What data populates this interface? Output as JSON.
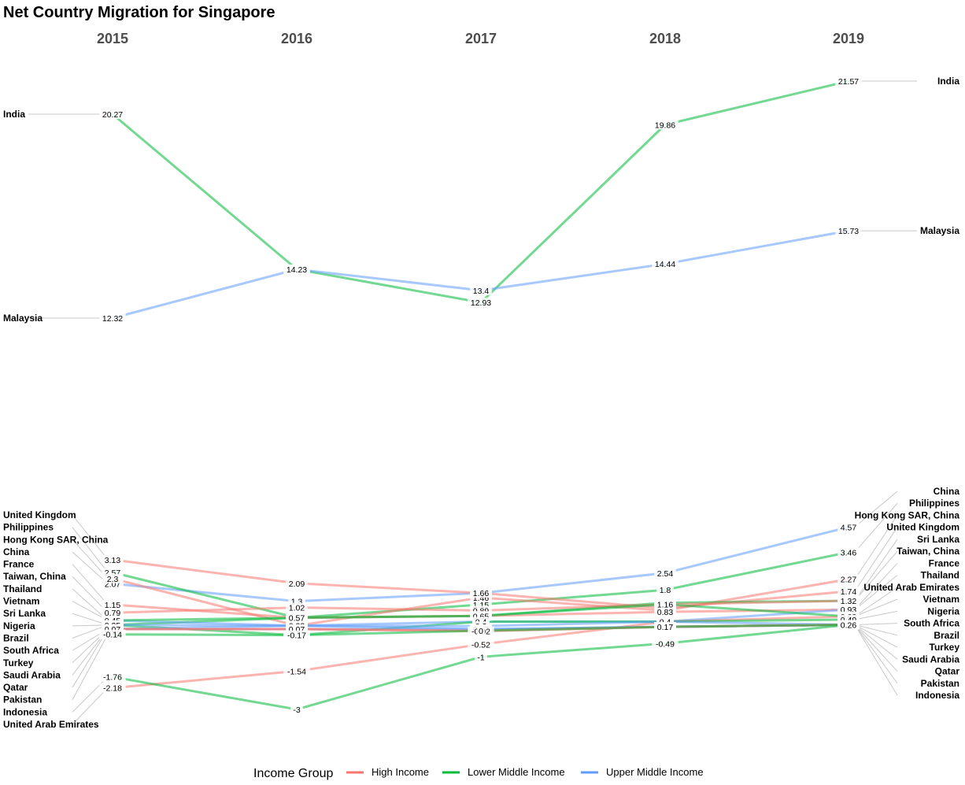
{
  "chart_data": {
    "type": "line",
    "title": "Net Country Migration for Singapore",
    "categories": [
      "2015",
      "2016",
      "2017",
      "2018",
      "2019"
    ],
    "legend": {
      "title": "Income Group",
      "position": "bottom",
      "groups": [
        {
          "name": "High Income",
          "color": "#F8766D"
        },
        {
          "name": "Lower Middle Income",
          "color": "#00BA38"
        },
        {
          "name": "Upper Middle Income",
          "color": "#619CFF"
        }
      ]
    },
    "series": [
      {
        "name": "India",
        "group": "Lower Middle Income",
        "values": [
          20.27,
          14.23,
          12.93,
          19.86,
          21.57
        ]
      },
      {
        "name": "Malaysia",
        "group": "Upper Middle Income",
        "values": [
          12.32,
          14.23,
          13.4,
          14.44,
          15.73
        ]
      },
      {
        "name": "China",
        "group": "Upper Middle Income",
        "values": [
          2.07,
          1.3,
          1.66,
          2.54,
          4.57
        ]
      },
      {
        "name": "Philippines",
        "group": "Lower Middle Income",
        "values": [
          2.57,
          0.57,
          1.15,
          1.8,
          3.46
        ]
      },
      {
        "name": "Hong Kong SAR, China",
        "group": "High Income",
        "values": [
          2.3,
          0.22,
          1.46,
          0.89,
          2.27
        ]
      },
      {
        "name": "United Kingdom",
        "group": "High Income",
        "values": [
          3.13,
          2.09,
          1.66,
          0.99,
          1.74
        ]
      },
      {
        "name": "Sri Lanka",
        "group": "Lower Middle Income",
        "values": [
          0.25,
          0.57,
          0.65,
          1.23,
          1.32
        ]
      },
      {
        "name": "Taiwan, China",
        "group": "High Income",
        "values": [
          0.79,
          1.02,
          0.89,
          1.16,
          1.32
        ]
      },
      {
        "name": "France",
        "group": "High Income",
        "values": [
          1.15,
          0.57,
          0.65,
          0.83,
          0.93
        ]
      },
      {
        "name": "Thailand",
        "group": "Upper Middle Income",
        "values": [
          0.45,
          0.22,
          0.4,
          0.4,
          0.93
        ]
      },
      {
        "name": "United Arab Emirates",
        "group": "High Income",
        "values": [
          -2.18,
          -1.54,
          -0.52,
          0.4,
          0.63
        ]
      },
      {
        "name": "Vietnam",
        "group": "Lower Middle Income",
        "values": [
          0.45,
          0.57,
          0.65,
          1.16,
          0.63
        ]
      },
      {
        "name": "Nigeria",
        "group": "Lower Middle Income",
        "values": [
          0.25,
          -0.17,
          0.4,
          0.4,
          0.49
        ]
      },
      {
        "name": "South Africa",
        "group": "Upper Middle Income",
        "values": [
          0.07,
          0.22,
          0.2,
          0.4,
          0.26
        ]
      },
      {
        "name": "Brazil",
        "group": "Upper Middle Income",
        "values": [
          0.25,
          0.22,
          0.07,
          0.17,
          0.26
        ]
      },
      {
        "name": "Turkey",
        "group": "Upper Middle Income",
        "values": [
          0.07,
          0.07,
          0.07,
          0.17,
          0.26
        ]
      },
      {
        "name": "Saudi Arabia",
        "group": "High Income",
        "values": [
          0.07,
          0.07,
          0.0,
          0.17,
          0.26
        ]
      },
      {
        "name": "Qatar",
        "group": "High Income",
        "values": [
          0.07,
          0.07,
          -0.02,
          0.17,
          0.26
        ]
      },
      {
        "name": "Pakistan",
        "group": "Lower Middle Income",
        "values": [
          -0.14,
          -0.17,
          0.0,
          0.17,
          0.26
        ]
      },
      {
        "name": "Indonesia",
        "group": "Lower Middle Income",
        "values": [
          -1.76,
          -3,
          -1,
          -0.49,
          0.26
        ]
      }
    ],
    "x_labels": [
      "2015",
      "2016",
      "2017",
      "2018",
      "2019"
    ],
    "grid": false
  }
}
